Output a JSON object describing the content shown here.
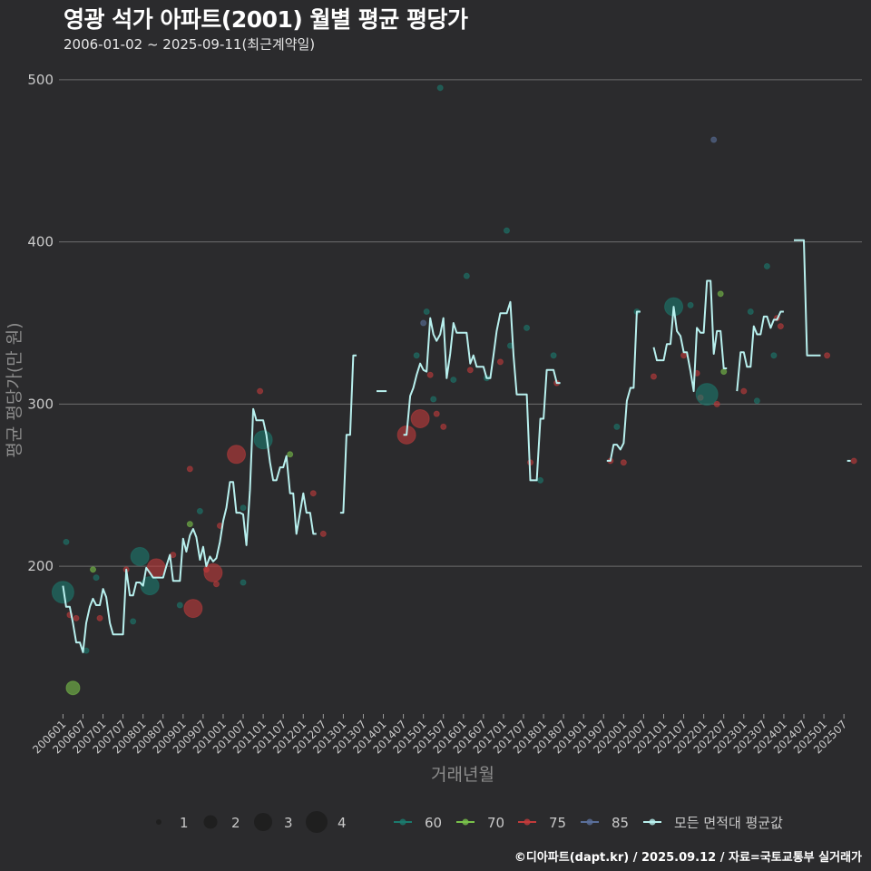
{
  "title": "영광 석가 아파트(2001) 월별 평균 평당가",
  "subtitle": "2006-01-02 ~ 2025-09-11(최근계약일)",
  "caption": "©디아파트(dapt.kr) / 2025.09.12 / 자료=국토교통부 실거래가",
  "colors": {
    "background": "#2b2b2d",
    "grid": "#6e6e6e",
    "line": "#b8f0ee",
    "s60": "#1b7a6e",
    "s70": "#79c24a",
    "s75": "#c23b3b",
    "s85": "#5a6f9a"
  },
  "chart_data": {
    "type": "scatter+line",
    "title": "영광 석가 아파트(2001) 월별 평균 평당가",
    "xlabel": "거래년월",
    "ylabel": "평균 평당가(만 원)",
    "ylim": [
      110,
      510
    ],
    "xlim": [
      2005.9,
      2025.95
    ],
    "yticks": [
      200,
      300,
      400,
      500
    ],
    "xticks": [
      "200601",
      "200607",
      "200701",
      "200707",
      "200801",
      "200807",
      "200901",
      "200907",
      "201001",
      "201007",
      "201101",
      "201107",
      "201201",
      "201207",
      "201301",
      "201307",
      "201401",
      "201407",
      "201501",
      "201507",
      "201601",
      "201607",
      "201701",
      "201707",
      "201801",
      "201807",
      "201901",
      "201907",
      "202001",
      "202007",
      "202101",
      "202107",
      "202201",
      "202207",
      "202301",
      "202307",
      "202401",
      "202407",
      "202501",
      "202507"
    ],
    "size_legend": {
      "title": "",
      "values": [
        1,
        2,
        3,
        4
      ]
    },
    "color_legend": [
      "60",
      "70",
      "75",
      "85",
      "모든 면적대 평균값"
    ],
    "avg_segments": [
      [
        [
          2006.0,
          188
        ],
        [
          2006.08,
          175
        ],
        [
          2006.17,
          175
        ],
        [
          2006.25,
          165
        ],
        [
          2006.33,
          153
        ],
        [
          2006.42,
          153
        ],
        [
          2006.5,
          147
        ],
        [
          2006.58,
          165
        ],
        [
          2006.67,
          175
        ],
        [
          2006.75,
          180
        ],
        [
          2006.83,
          176
        ],
        [
          2006.92,
          176
        ],
        [
          2007.0,
          186
        ],
        [
          2007.08,
          181
        ],
        [
          2007.17,
          165
        ],
        [
          2007.25,
          158
        ],
        [
          2007.33,
          158
        ],
        [
          2007.42,
          158
        ],
        [
          2007.5,
          158
        ],
        [
          2007.58,
          198
        ],
        [
          2007.67,
          182
        ],
        [
          2007.75,
          182
        ],
        [
          2007.83,
          190
        ],
        [
          2007.92,
          190
        ],
        [
          2008.0,
          188
        ],
        [
          2008.08,
          199
        ],
        [
          2008.17,
          196
        ],
        [
          2008.25,
          193
        ],
        [
          2008.33,
          193
        ],
        [
          2008.42,
          193
        ],
        [
          2008.5,
          193
        ],
        [
          2008.58,
          200
        ],
        [
          2008.67,
          207
        ],
        [
          2008.75,
          191
        ],
        [
          2008.83,
          191
        ],
        [
          2008.92,
          191
        ],
        [
          2009.0,
          217
        ],
        [
          2009.08,
          209
        ],
        [
          2009.17,
          219
        ],
        [
          2009.25,
          223
        ],
        [
          2009.33,
          218
        ],
        [
          2009.42,
          204
        ],
        [
          2009.5,
          212
        ],
        [
          2009.58,
          200
        ],
        [
          2009.67,
          206
        ],
        [
          2009.75,
          203
        ],
        [
          2009.83,
          205
        ],
        [
          2009.92,
          215
        ],
        [
          2010.0,
          228
        ],
        [
          2010.08,
          236
        ],
        [
          2010.17,
          252
        ],
        [
          2010.25,
          252
        ],
        [
          2010.33,
          233
        ],
        [
          2010.42,
          233
        ],
        [
          2010.5,
          232
        ],
        [
          2010.58,
          213
        ],
        [
          2010.67,
          247
        ],
        [
          2010.75,
          297
        ],
        [
          2010.83,
          290
        ],
        [
          2010.92,
          290
        ],
        [
          2011.0,
          290
        ],
        [
          2011.08,
          281
        ],
        [
          2011.17,
          264
        ],
        [
          2011.25,
          253
        ],
        [
          2011.33,
          253
        ],
        [
          2011.42,
          261
        ],
        [
          2011.5,
          261
        ],
        [
          2011.58,
          268
        ],
        [
          2011.67,
          245
        ],
        [
          2011.75,
          245
        ],
        [
          2011.83,
          220
        ],
        [
          2011.92,
          233
        ],
        [
          2012.0,
          245
        ],
        [
          2012.08,
          233
        ],
        [
          2012.17,
          233
        ],
        [
          2012.25,
          220
        ],
        [
          2012.33,
          220
        ]
      ],
      [
        [
          2012.92,
          233
        ],
        [
          2013.0,
          233
        ],
        [
          2013.08,
          281
        ],
        [
          2013.17,
          281
        ],
        [
          2013.25,
          330
        ],
        [
          2013.33,
          330
        ]
      ],
      [
        [
          2013.83,
          308
        ],
        [
          2013.92,
          308
        ],
        [
          2014.0,
          308
        ],
        [
          2014.08,
          308
        ]
      ],
      [
        [
          2014.5,
          281
        ],
        [
          2014.58,
          281
        ],
        [
          2014.67,
          305
        ],
        [
          2014.75,
          310
        ],
        [
          2014.83,
          318
        ],
        [
          2014.92,
          325
        ],
        [
          2015.0,
          321
        ],
        [
          2015.08,
          320
        ],
        [
          2015.17,
          353
        ],
        [
          2015.25,
          343
        ],
        [
          2015.33,
          339
        ],
        [
          2015.42,
          343
        ],
        [
          2015.5,
          353
        ],
        [
          2015.58,
          316
        ],
        [
          2015.67,
          331
        ],
        [
          2015.75,
          350
        ],
        [
          2015.83,
          344
        ],
        [
          2015.92,
          344
        ],
        [
          2016.0,
          344
        ],
        [
          2016.08,
          344
        ],
        [
          2016.17,
          325
        ],
        [
          2016.25,
          330
        ],
        [
          2016.33,
          323
        ],
        [
          2016.42,
          323
        ],
        [
          2016.5,
          323
        ],
        [
          2016.58,
          316
        ],
        [
          2016.67,
          316
        ],
        [
          2016.75,
          330
        ],
        [
          2016.83,
          345
        ],
        [
          2016.92,
          356
        ],
        [
          2017.0,
          356
        ],
        [
          2017.08,
          356
        ],
        [
          2017.17,
          363
        ],
        [
          2017.25,
          330
        ],
        [
          2017.33,
          306
        ],
        [
          2017.42,
          306
        ],
        [
          2017.5,
          306
        ],
        [
          2017.58,
          306
        ],
        [
          2017.67,
          253
        ],
        [
          2017.75,
          253
        ],
        [
          2017.83,
          253
        ],
        [
          2017.92,
          291
        ],
        [
          2018.0,
          291
        ],
        [
          2018.08,
          321
        ],
        [
          2018.17,
          321
        ],
        [
          2018.25,
          321
        ],
        [
          2018.33,
          313
        ],
        [
          2018.42,
          313
        ]
      ],
      [
        [
          2019.58,
          265
        ],
        [
          2019.67,
          265
        ],
        [
          2019.75,
          275
        ],
        [
          2019.83,
          275
        ],
        [
          2019.92,
          272
        ],
        [
          2020.0,
          276
        ],
        [
          2020.08,
          302
        ],
        [
          2020.17,
          310
        ],
        [
          2020.25,
          310
        ],
        [
          2020.33,
          357
        ],
        [
          2020.42,
          357
        ]
      ],
      [
        [
          2020.75,
          335
        ],
        [
          2020.83,
          327
        ],
        [
          2020.92,
          327
        ],
        [
          2021.0,
          327
        ],
        [
          2021.08,
          337
        ],
        [
          2021.17,
          337
        ],
        [
          2021.25,
          360
        ],
        [
          2021.33,
          345
        ],
        [
          2021.42,
          342
        ],
        [
          2021.5,
          332
        ],
        [
          2021.58,
          332
        ],
        [
          2021.67,
          320
        ],
        [
          2021.75,
          308
        ],
        [
          2021.83,
          347
        ],
        [
          2021.92,
          344
        ],
        [
          2022.0,
          344
        ],
        [
          2022.08,
          376
        ],
        [
          2022.17,
          376
        ],
        [
          2022.25,
          331
        ],
        [
          2022.33,
          345
        ],
        [
          2022.42,
          345
        ],
        [
          2022.5,
          322
        ],
        [
          2022.58,
          322
        ]
      ],
      [
        [
          2022.83,
          308
        ],
        [
          2022.92,
          332
        ],
        [
          2023.0,
          332
        ],
        [
          2023.08,
          323
        ],
        [
          2023.17,
          323
        ],
        [
          2023.25,
          348
        ],
        [
          2023.33,
          343
        ],
        [
          2023.42,
          343
        ],
        [
          2023.5,
          354
        ],
        [
          2023.58,
          354
        ],
        [
          2023.67,
          347
        ],
        [
          2023.75,
          352
        ],
        [
          2023.83,
          352
        ],
        [
          2023.92,
          357
        ],
        [
          2024.0,
          357
        ]
      ],
      [
        [
          2024.25,
          401
        ],
        [
          2024.33,
          401
        ],
        [
          2024.42,
          401
        ],
        [
          2024.5,
          401
        ],
        [
          2024.58,
          330
        ],
        [
          2024.67,
          330
        ],
        [
          2024.75,
          330
        ],
        [
          2024.83,
          330
        ],
        [
          2024.92,
          330
        ]
      ],
      [
        [
          2025.58,
          265
        ],
        [
          2025.67,
          265
        ]
      ]
    ],
    "points": [
      [
        2006.0,
        184,
        4,
        "60"
      ],
      [
        2006.08,
        215,
        1,
        "60"
      ],
      [
        2006.17,
        170,
        1,
        "75"
      ],
      [
        2006.25,
        125,
        2,
        "70"
      ],
      [
        2006.33,
        168,
        1,
        "75"
      ],
      [
        2006.58,
        148,
        1,
        "60"
      ],
      [
        2006.75,
        198,
        1,
        "70"
      ],
      [
        2006.83,
        193,
        1,
        "60"
      ],
      [
        2006.92,
        168,
        1,
        "75"
      ],
      [
        2007.58,
        198,
        1,
        "75"
      ],
      [
        2007.75,
        166,
        1,
        "60"
      ],
      [
        2007.92,
        206,
        3,
        "60"
      ],
      [
        2008.17,
        188,
        3,
        "60"
      ],
      [
        2008.33,
        199,
        3,
        "75"
      ],
      [
        2008.75,
        207,
        1,
        "75"
      ],
      [
        2008.92,
        176,
        1,
        "60"
      ],
      [
        2009.17,
        260,
        1,
        "75"
      ],
      [
        2009.17,
        226,
        1,
        "70"
      ],
      [
        2009.25,
        174,
        3,
        "75"
      ],
      [
        2009.42,
        234,
        1,
        "60"
      ],
      [
        2009.58,
        198,
        1,
        "75"
      ],
      [
        2009.75,
        196,
        3,
        "75"
      ],
      [
        2009.83,
        189,
        1,
        "75"
      ],
      [
        2009.92,
        225,
        1,
        "75"
      ],
      [
        2010.33,
        269,
        3,
        "75"
      ],
      [
        2010.5,
        190,
        1,
        "60"
      ],
      [
        2010.5,
        236,
        1,
        "60"
      ],
      [
        2010.92,
        308,
        1,
        "75"
      ],
      [
        2011.0,
        278,
        3,
        "60"
      ],
      [
        2011.67,
        269,
        1,
        "70"
      ],
      [
        2012.25,
        245,
        1,
        "75"
      ],
      [
        2012.5,
        220,
        1,
        "75"
      ],
      [
        2014.58,
        281,
        3,
        "75"
      ],
      [
        2014.83,
        330,
        1,
        "60"
      ],
      [
        2014.92,
        291,
        3,
        "75"
      ],
      [
        2015.0,
        350,
        1,
        "85"
      ],
      [
        2015.08,
        357,
        1,
        "60"
      ],
      [
        2015.17,
        318,
        1,
        "75"
      ],
      [
        2015.25,
        303,
        1,
        "60"
      ],
      [
        2015.33,
        294,
        1,
        "75"
      ],
      [
        2015.42,
        495,
        1,
        "60"
      ],
      [
        2015.5,
        286,
        1,
        "75"
      ],
      [
        2015.75,
        315,
        1,
        "60"
      ],
      [
        2016.08,
        379,
        1,
        "60"
      ],
      [
        2016.17,
        321,
        1,
        "75"
      ],
      [
        2016.58,
        316,
        1,
        "60"
      ],
      [
        2016.92,
        326,
        1,
        "75"
      ],
      [
        2017.08,
        407,
        1,
        "60"
      ],
      [
        2017.17,
        336,
        1,
        "60"
      ],
      [
        2017.58,
        347,
        1,
        "60"
      ],
      [
        2017.67,
        264,
        1,
        "75"
      ],
      [
        2017.92,
        253,
        1,
        "60"
      ],
      [
        2018.25,
        330,
        1,
        "60"
      ],
      [
        2018.33,
        313,
        1,
        "75"
      ],
      [
        2019.67,
        265,
        1,
        "75"
      ],
      [
        2019.83,
        286,
        1,
        "60"
      ],
      [
        2020.0,
        264,
        1,
        "75"
      ],
      [
        2020.33,
        357,
        1,
        "60"
      ],
      [
        2020.75,
        317,
        1,
        "75"
      ],
      [
        2021.25,
        360,
        3,
        "60"
      ],
      [
        2021.5,
        330,
        1,
        "75"
      ],
      [
        2021.67,
        361,
        1,
        "60"
      ],
      [
        2021.83,
        319,
        1,
        "75"
      ],
      [
        2021.92,
        304,
        1,
        "75"
      ],
      [
        2022.08,
        306,
        4,
        "60"
      ],
      [
        2022.25,
        463,
        1,
        "85"
      ],
      [
        2022.33,
        300,
        1,
        "75"
      ],
      [
        2022.42,
        368,
        1,
        "70"
      ],
      [
        2022.5,
        320,
        1,
        "70"
      ],
      [
        2023.0,
        308,
        1,
        "75"
      ],
      [
        2023.17,
        357,
        1,
        "60"
      ],
      [
        2023.33,
        302,
        1,
        "60"
      ],
      [
        2023.58,
        385,
        1,
        "60"
      ],
      [
        2023.75,
        330,
        1,
        "60"
      ],
      [
        2023.83,
        353,
        1,
        "75"
      ],
      [
        2023.92,
        348,
        1,
        "75"
      ],
      [
        2025.08,
        330,
        1,
        "75"
      ],
      [
        2025.75,
        265,
        1,
        "75"
      ]
    ]
  }
}
